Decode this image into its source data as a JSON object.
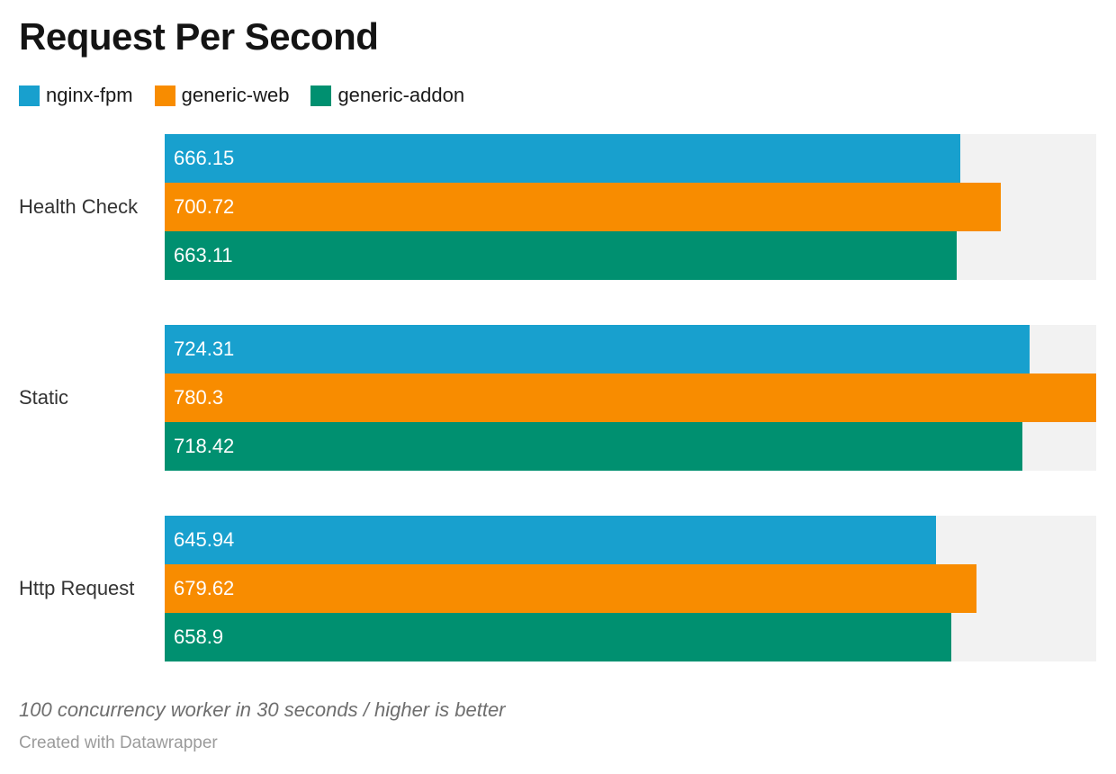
{
  "chart_data": {
    "type": "bar",
    "orientation": "horizontal",
    "title": "Request Per Second",
    "categories": [
      "Health Check",
      "Static",
      "Http Request"
    ],
    "series": [
      {
        "name": "nginx-fpm",
        "color": "#18a0ce",
        "values": [
          666.15,
          724.31,
          645.94
        ]
      },
      {
        "name": "generic-web",
        "color": "#f88c00",
        "values": [
          700.72,
          780.3,
          679.62
        ]
      },
      {
        "name": "generic-addon",
        "color": "#009070",
        "values": [
          663.11,
          718.42,
          658.9
        ]
      }
    ],
    "xlim": [
      0,
      780.3
    ],
    "xlabel": "",
    "ylabel": "",
    "grid": false,
    "legend_position": "top-left",
    "value_labels": "inside-start",
    "track_color": "#f2f2f2",
    "value_label_color": "#ffffff"
  },
  "legend": {
    "items": [
      {
        "label": "nginx-fpm"
      },
      {
        "label": "generic-web"
      },
      {
        "label": "generic-addon"
      }
    ]
  },
  "footer": {
    "note": "100 concurrency worker in 30 seconds / higher is better",
    "attribution": "Created with Datawrapper"
  }
}
